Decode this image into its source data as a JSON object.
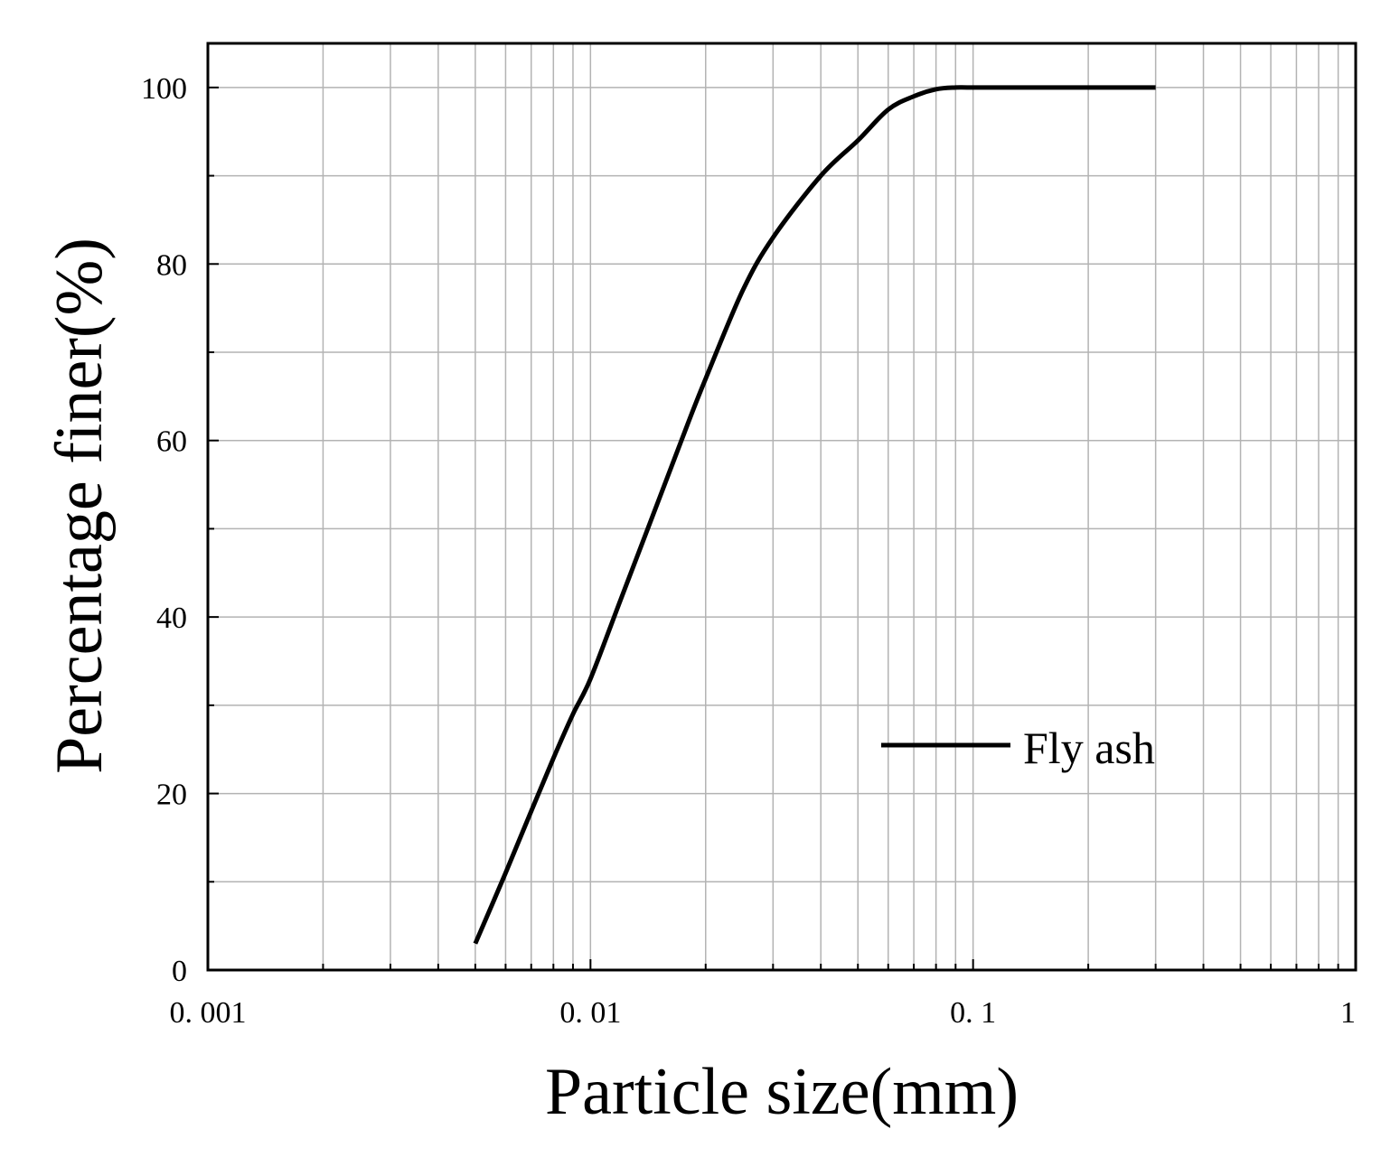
{
  "chart_data": {
    "type": "line",
    "title": "",
    "xlabel": "Particle size(mm)",
    "ylabel": "Percentage finer(%)",
    "x_scale": "log",
    "xlim": [
      0.001,
      1
    ],
    "ylim": [
      0,
      105
    ],
    "x_ticks": [
      0.001,
      0.01,
      0.1,
      1
    ],
    "x_tick_labels": [
      "0. 001",
      "0. 01",
      "0. 1",
      "1"
    ],
    "y_ticks": [
      0,
      20,
      40,
      60,
      80,
      100
    ],
    "y_tick_labels": [
      "0",
      "20",
      "40",
      "60",
      "80",
      "100"
    ],
    "grid": true,
    "legend_position": "lower-right",
    "series": [
      {
        "name": "Fly ash",
        "color": "#000000",
        "x": [
          0.005,
          0.006,
          0.007,
          0.008,
          0.009,
          0.01,
          0.012,
          0.015,
          0.018,
          0.02,
          0.025,
          0.03,
          0.04,
          0.05,
          0.06,
          0.07,
          0.08,
          0.09,
          0.1,
          0.15,
          0.2,
          0.3
        ],
        "y": [
          3,
          11,
          18,
          24,
          29,
          33,
          42,
          53,
          62,
          67,
          77,
          83,
          90,
          94,
          97.5,
          99,
          99.8,
          100,
          100,
          100,
          100,
          100
        ]
      }
    ]
  }
}
